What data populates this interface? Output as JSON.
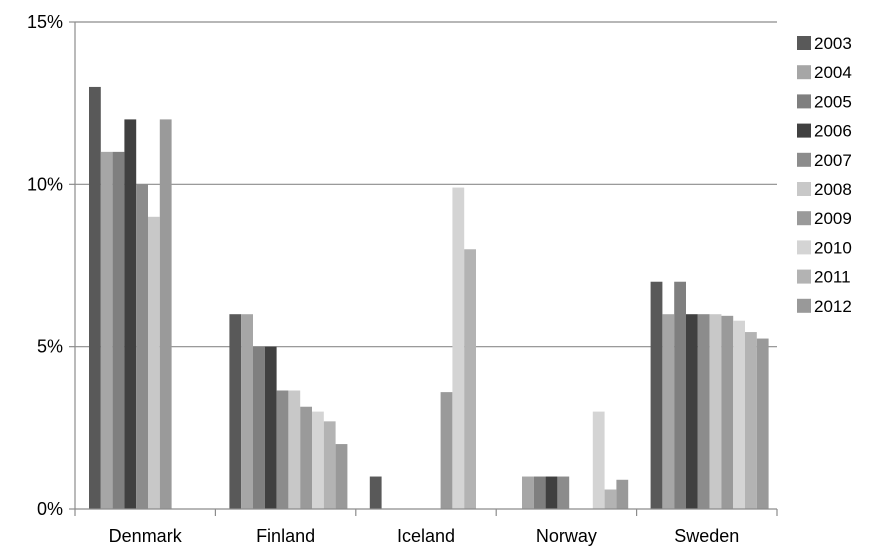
{
  "chart_data": {
    "type": "bar",
    "title": "",
    "xlabel": "",
    "ylabel": "",
    "ylim": [
      0,
      15
    ],
    "y_ticks": [
      "0%",
      "5%",
      "10%",
      "15%"
    ],
    "y_tick_values": [
      0,
      5,
      10,
      15
    ],
    "grid": true,
    "legend_position": "right",
    "categories": [
      "Denmark",
      "Finland",
      "Iceland",
      "Norway",
      "Sweden"
    ],
    "series": [
      {
        "name": "2003",
        "color": "#595959",
        "values": [
          13,
          6,
          1,
          null,
          7
        ]
      },
      {
        "name": "2004",
        "color": "#a6a6a6",
        "values": [
          11,
          6,
          null,
          1,
          6
        ]
      },
      {
        "name": "2005",
        "color": "#7f7f7f",
        "values": [
          11,
          5,
          null,
          1,
          7
        ]
      },
      {
        "name": "2006",
        "color": "#404040",
        "values": [
          12,
          5,
          null,
          1,
          6
        ]
      },
      {
        "name": "2007",
        "color": "#8c8c8c",
        "values": [
          10,
          3.65,
          null,
          1,
          6
        ]
      },
      {
        "name": "2008",
        "color": "#c8c8c8",
        "values": [
          9,
          3.65,
          null,
          null,
          6
        ]
      },
      {
        "name": "2009",
        "color": "#9a9a9a",
        "values": [
          12,
          3.15,
          3.6,
          null,
          5.95
        ]
      },
      {
        "name": "2010",
        "color": "#d4d4d4",
        "values": [
          null,
          3.0,
          9.9,
          3.0,
          5.8
        ]
      },
      {
        "name": "2011",
        "color": "#b3b3b3",
        "values": [
          null,
          2.7,
          8.0,
          0.6,
          5.45
        ]
      },
      {
        "name": "2012",
        "color": "#999999",
        "values": [
          null,
          2.0,
          null,
          0.9,
          5.25
        ]
      }
    ]
  }
}
